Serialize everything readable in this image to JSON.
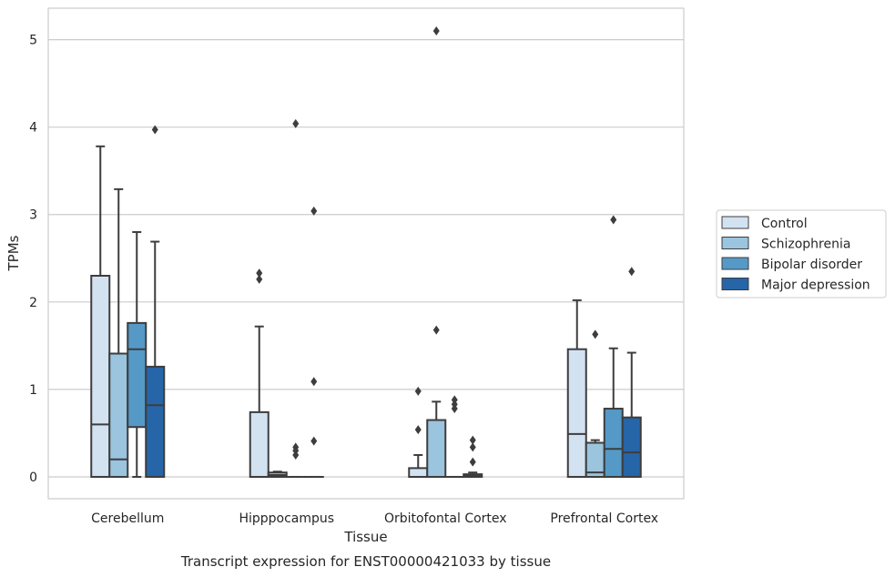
{
  "chart_data": {
    "type": "box",
    "title": "",
    "caption": "Transcript expression for ENST00000421033 by tissue",
    "xlabel": "Tissue",
    "ylabel": "TPMs",
    "ylim": [
      -0.25,
      5.36
    ],
    "yticks": [
      0,
      1,
      2,
      3,
      4,
      5
    ],
    "grid": "horizontal",
    "legend_position": "right",
    "categories": [
      "Cerebellum",
      "Hipppocampus",
      "Orbitofontal Cortex",
      "Prefrontal Cortex"
    ],
    "series": [
      {
        "name": "Control",
        "color": "#d2e2f1",
        "boxes": [
          {
            "min": 0,
            "q1": 0,
            "median": 0.6,
            "q3": 2.3,
            "max": 3.78,
            "outliers": []
          },
          {
            "min": 0,
            "q1": 0,
            "median": 0,
            "q3": 0.74,
            "max": 1.72,
            "outliers": [
              2.26,
              2.33
            ]
          },
          {
            "min": 0,
            "q1": 0,
            "median": 0,
            "q3": 0.1,
            "max": 0.25,
            "outliers": [
              0.54,
              0.98
            ]
          },
          {
            "min": 0,
            "q1": 0,
            "median": 0.49,
            "q3": 1.46,
            "max": 2.02,
            "outliers": []
          }
        ]
      },
      {
        "name": "Schizophrenia",
        "color": "#9bc4de",
        "boxes": [
          {
            "min": 0,
            "q1": 0,
            "median": 0.2,
            "q3": 1.41,
            "max": 3.29,
            "outliers": []
          },
          {
            "min": 0,
            "q1": 0,
            "median": 0.02,
            "q3": 0.05,
            "max": 0.06,
            "outliers": []
          },
          {
            "min": 0,
            "q1": 0,
            "median": 0,
            "q3": 0.65,
            "max": 0.86,
            "outliers": [
              1.68,
              5.1
            ]
          },
          {
            "min": 0,
            "q1": 0,
            "median": 0.05,
            "q3": 0.39,
            "max": 0.42,
            "outliers": [
              1.63
            ]
          }
        ]
      },
      {
        "name": "Bipolar disorder",
        "color": "#5599c7",
        "boxes": [
          {
            "min": 0,
            "q1": 0.57,
            "median": 1.46,
            "q3": 1.76,
            "max": 2.8,
            "outliers": []
          },
          {
            "min": 0,
            "q1": 0,
            "median": 0,
            "q3": 0,
            "max": 0,
            "outliers": [
              0.25,
              0.3,
              0.34,
              4.04
            ]
          },
          {
            "min": 0,
            "q1": 0,
            "median": 0,
            "q3": 0,
            "max": 0,
            "outliers": [
              0.78,
              0.83,
              0.88
            ]
          },
          {
            "min": 0,
            "q1": 0,
            "median": 0.32,
            "q3": 0.78,
            "max": 1.47,
            "outliers": [
              2.94
            ]
          }
        ]
      },
      {
        "name": "Major depression",
        "color": "#2665a8",
        "boxes": [
          {
            "min": 0,
            "q1": 0,
            "median": 0.82,
            "q3": 1.26,
            "max": 2.69,
            "outliers": [
              3.97
            ]
          },
          {
            "min": 0,
            "q1": 0,
            "median": 0,
            "q3": 0,
            "max": 0,
            "outliers": [
              0.41,
              1.09,
              3.04
            ]
          },
          {
            "min": 0,
            "q1": 0,
            "median": 0.01,
            "q3": 0.03,
            "max": 0.05,
            "outliers": [
              0.17,
              0.34,
              0.42
            ]
          },
          {
            "min": 0,
            "q1": 0,
            "median": 0.28,
            "q3": 0.68,
            "max": 1.42,
            "outliers": [
              2.35
            ]
          }
        ]
      }
    ]
  }
}
